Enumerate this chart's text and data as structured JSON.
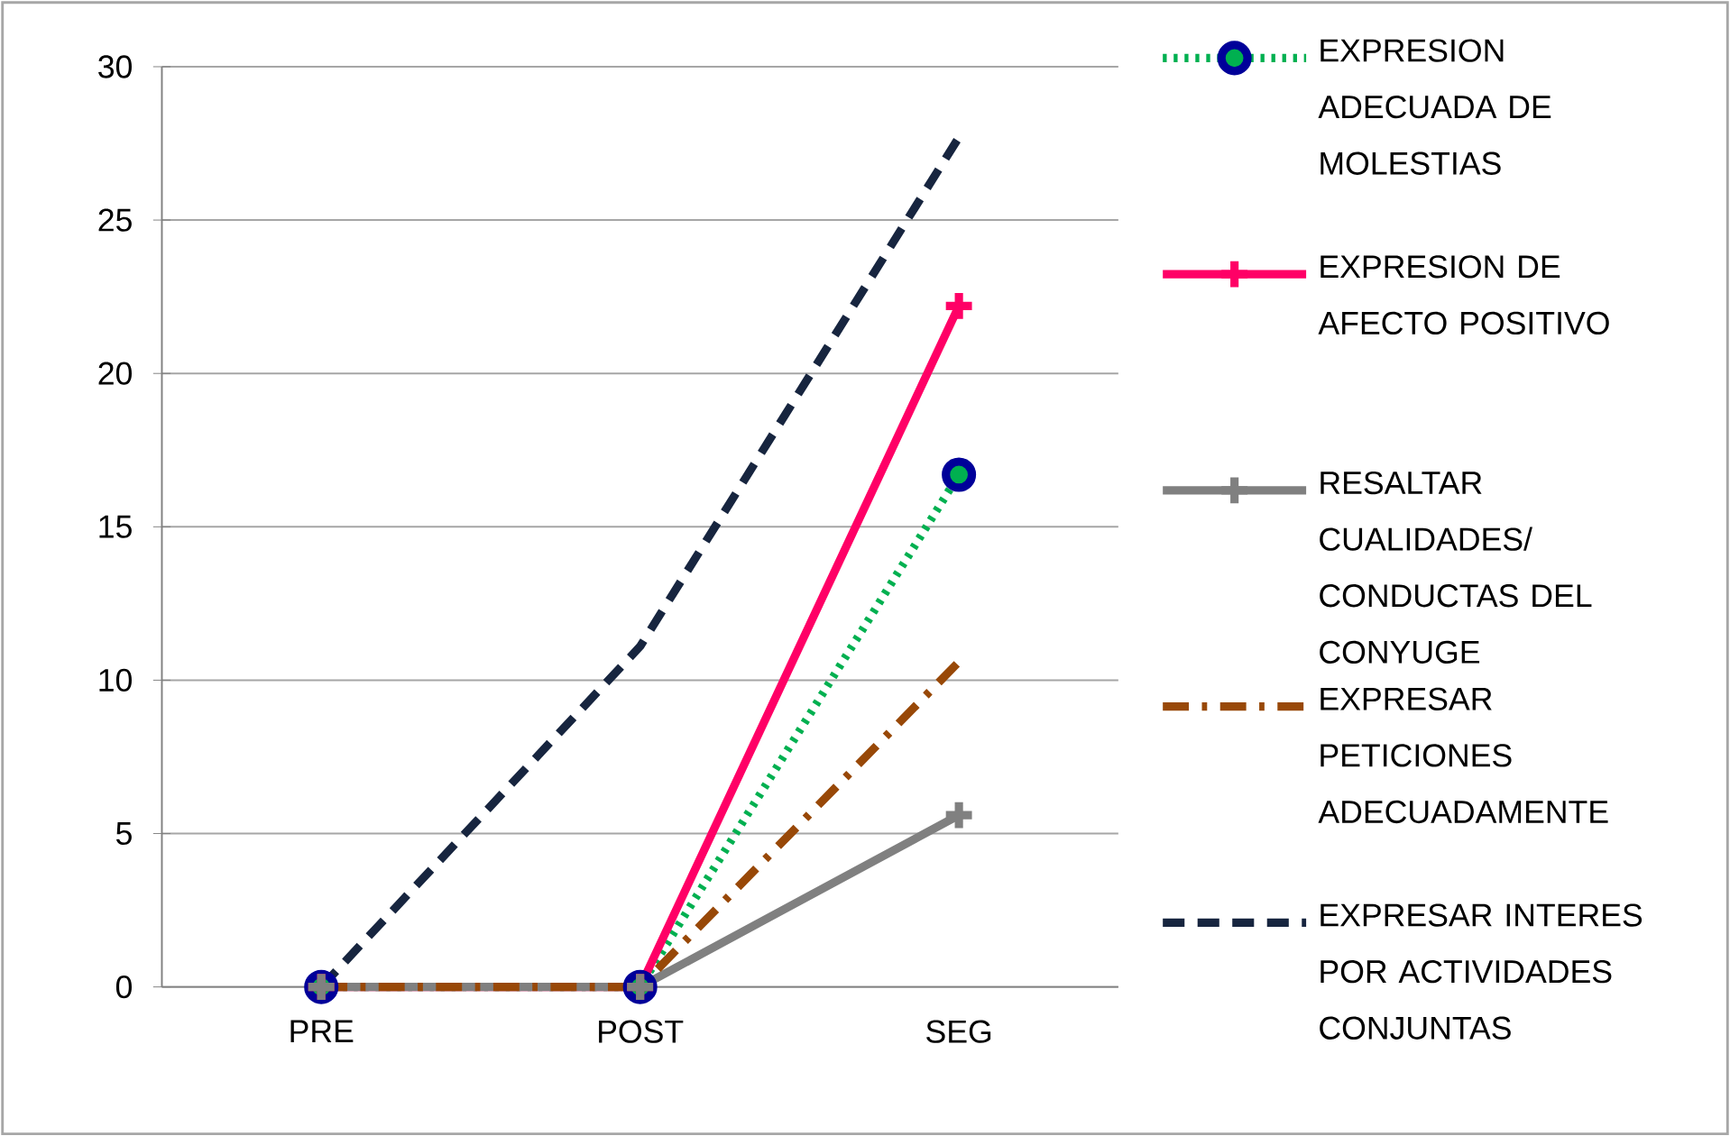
{
  "chart_data": {
    "type": "line",
    "categories": [
      "PRE",
      "POST",
      "SEG"
    ],
    "series": [
      {
        "name": "EXPRESION ADECUADA DE MOLESTIAS",
        "color": "#00b050",
        "marker": "circle",
        "line_style": "dotted",
        "values": [
          0,
          0,
          16.7
        ]
      },
      {
        "name": "EXPRESION DE AFECTO POSITIVO",
        "color": "#ff0066",
        "marker": "cross",
        "line_style": "solid",
        "values": [
          0,
          0,
          22.2
        ]
      },
      {
        "name": "RESALTAR CUALIDADES/ CONDUCTAS DEL CONYUGE",
        "color": "#808080",
        "marker": "cross",
        "line_style": "solid",
        "values": [
          0,
          0,
          5.6
        ]
      },
      {
        "name": "EXPRESAR PETICIONES ADECUADAMENTE",
        "color": "#984807",
        "marker": "none",
        "line_style": "dashdot",
        "values": [
          0,
          0,
          10.6
        ]
      },
      {
        "name": "EXPRESAR INTERES POR ACTIVIDADES CONJUNTAS",
        "color": "#17253f",
        "marker": "none",
        "line_style": "dashed",
        "values": [
          0,
          11.1,
          27.7
        ]
      }
    ],
    "ylim": [
      0,
      30
    ],
    "yticks": [
      0,
      5,
      10,
      15,
      20,
      25,
      30
    ],
    "grid": "y",
    "legend": "right"
  }
}
